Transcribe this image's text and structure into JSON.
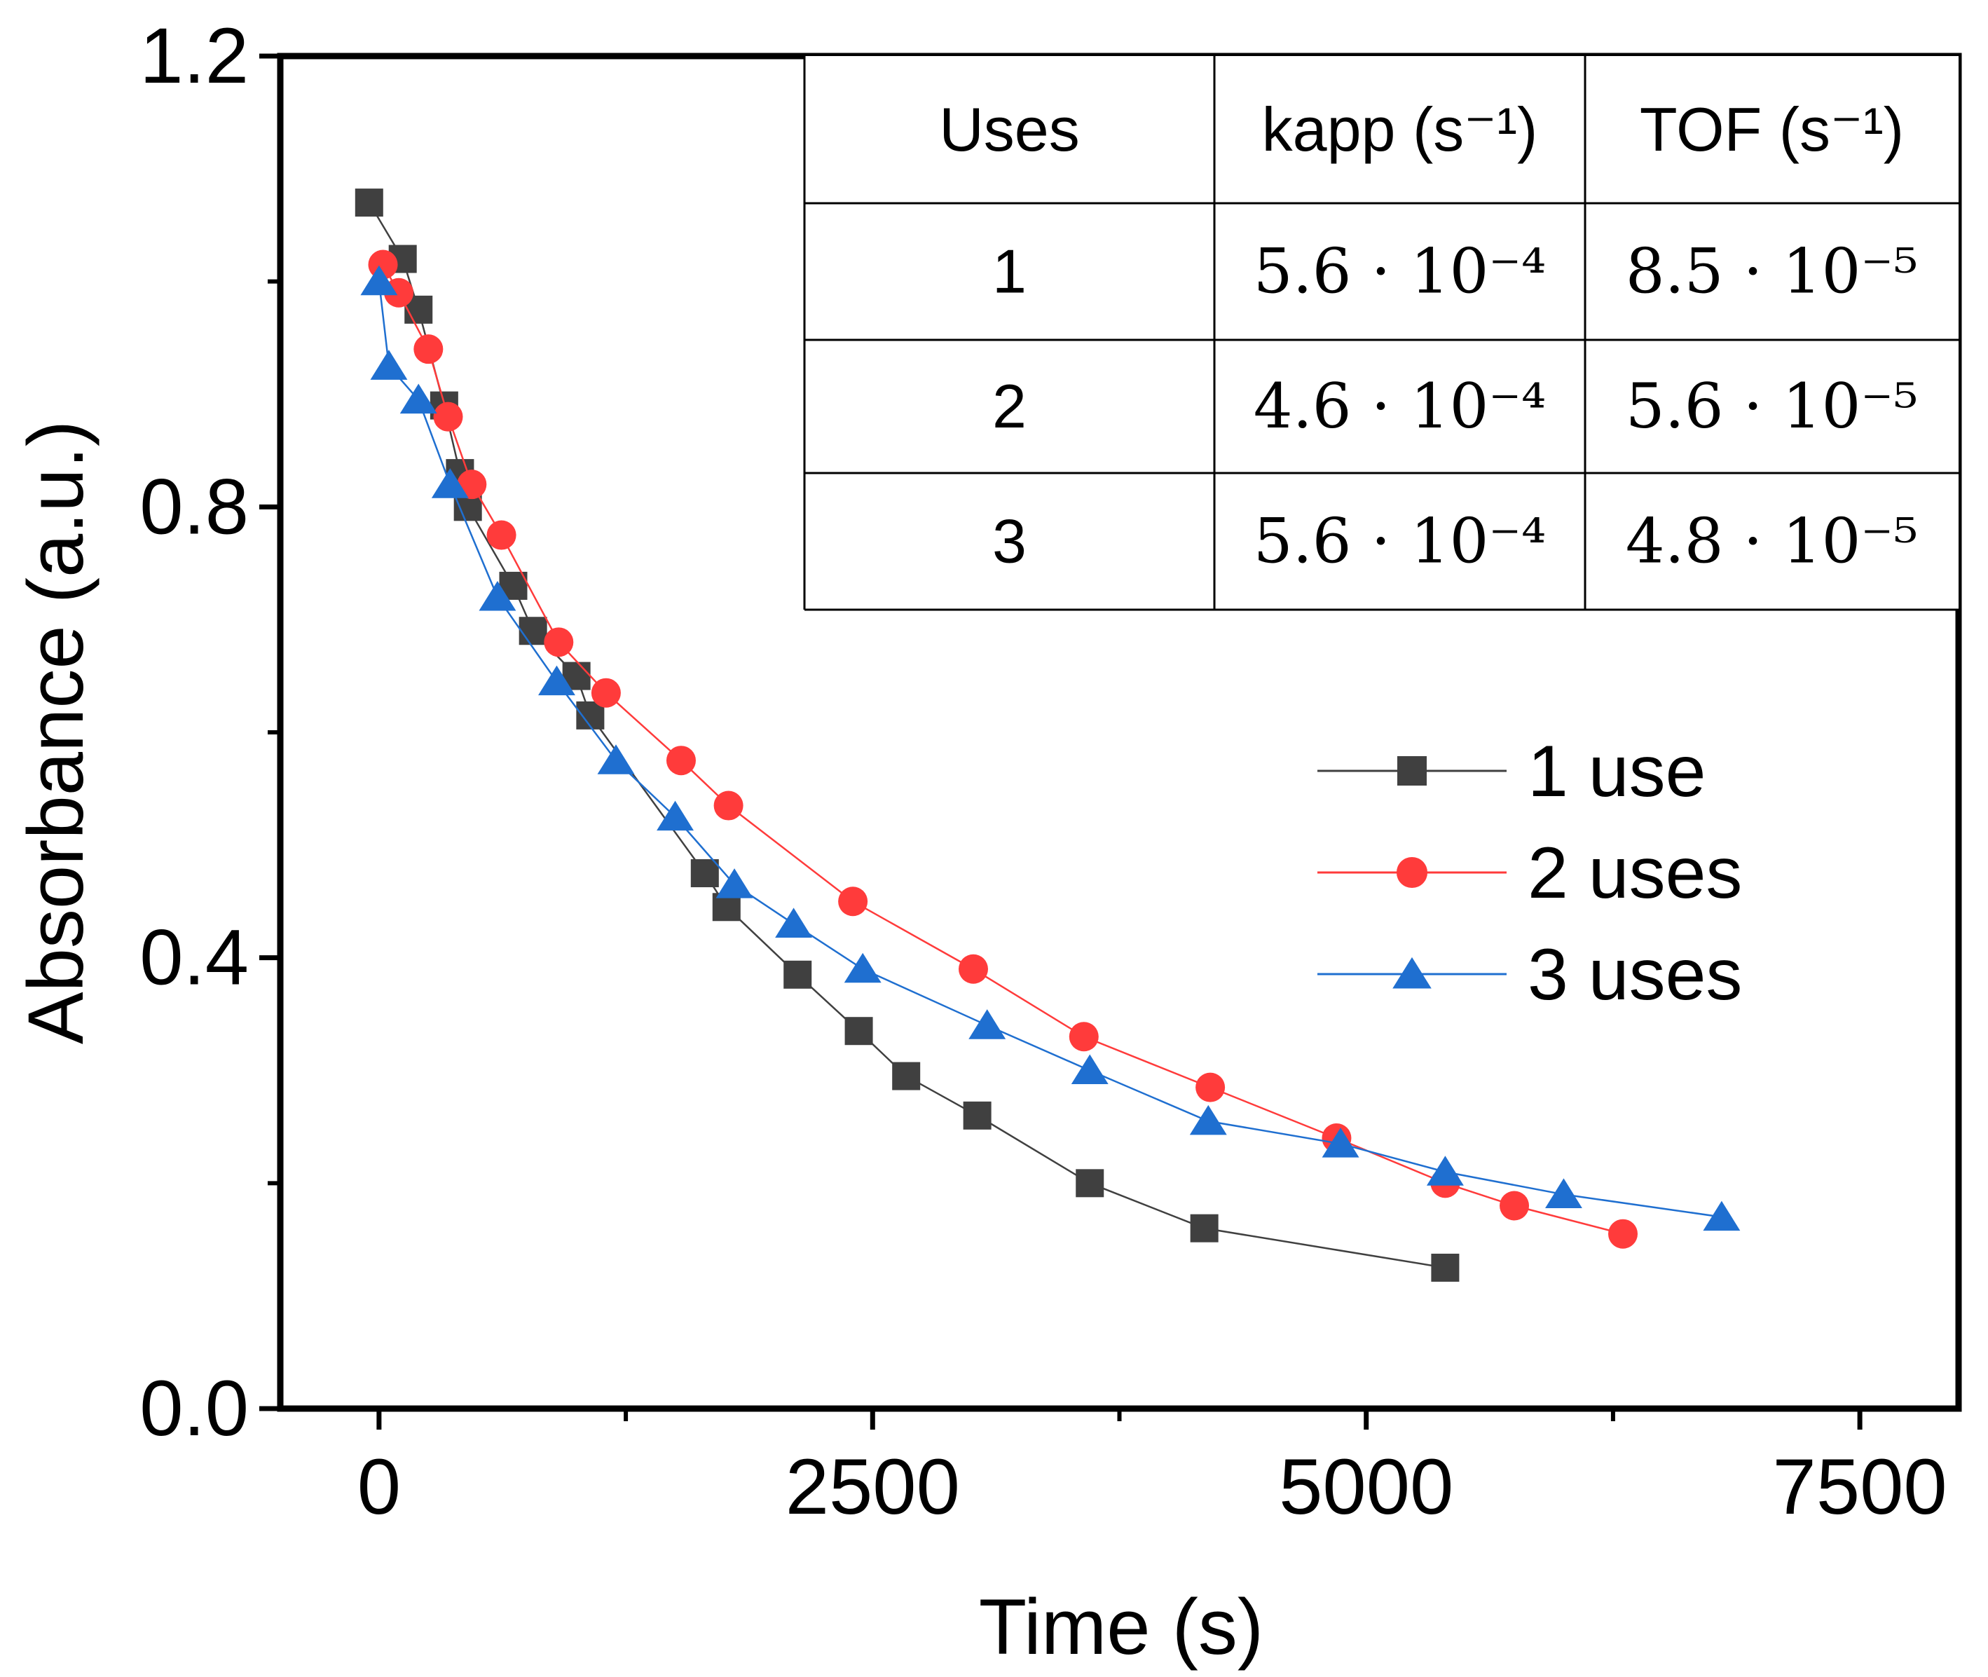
{
  "chart_data": {
    "type": "line",
    "title": "",
    "xlabel": "Time (s)",
    "ylabel": "Absorbance (a.u.)",
    "xlim": [
      -500,
      8000
    ],
    "ylim": [
      0.0,
      1.2
    ],
    "x_ticks": [
      0,
      2500,
      5000,
      7500
    ],
    "x_tick_labels": [
      "0",
      "2500",
      "5000",
      "7500"
    ],
    "y_ticks": [
      0.0,
      0.4,
      0.8,
      1.2
    ],
    "y_tick_labels": [
      "0.0",
      "0.4",
      "0.8",
      "1.2"
    ],
    "grid": false,
    "legend_position": "center-right",
    "series": [
      {
        "name": "1 use",
        "color": "#404040",
        "marker": "square",
        "x": [
          -50,
          120,
          200,
          330,
          410,
          450,
          680,
          780,
          1000,
          1070,
          1650,
          1760,
          2120,
          2430,
          2670,
          3030,
          3600,
          4180,
          5400
        ],
        "y": [
          1.07,
          1.02,
          0.975,
          0.89,
          0.83,
          0.8,
          0.73,
          0.69,
          0.65,
          0.615,
          0.475,
          0.445,
          0.385,
          0.335,
          0.295,
          0.26,
          0.2,
          0.16,
          0.125
        ]
      },
      {
        "name": "2 uses",
        "color": "#ff3b3b",
        "marker": "circle",
        "x": [
          20,
          100,
          250,
          350,
          470,
          620,
          910,
          1150,
          1530,
          1770,
          2400,
          3010,
          3570,
          4210,
          4850,
          5400,
          5750,
          6300
        ],
        "y": [
          1.015,
          0.99,
          0.94,
          0.88,
          0.82,
          0.775,
          0.68,
          0.635,
          0.575,
          0.535,
          0.45,
          0.39,
          0.33,
          0.285,
          0.24,
          0.2,
          0.18,
          0.155
        ]
      },
      {
        "name": "3 uses",
        "color": "#1f6fd0",
        "marker": "triangle",
        "x": [
          0,
          50,
          200,
          360,
          600,
          900,
          1200,
          1500,
          1800,
          2100,
          2450,
          3080,
          3600,
          4200,
          4870,
          5400,
          6000,
          6800
        ],
        "y": [
          1.0,
          0.925,
          0.895,
          0.82,
          0.72,
          0.645,
          0.575,
          0.525,
          0.465,
          0.43,
          0.39,
          0.34,
          0.3,
          0.255,
          0.235,
          0.21,
          0.19,
          0.17
        ]
      }
    ],
    "inset_table": {
      "headers": [
        "Uses",
        "kapp (s⁻¹)",
        "TOF (s⁻¹)"
      ],
      "rows": [
        [
          "1",
          "5.6 · 10⁻⁴",
          "8.5 · 10⁻⁵"
        ],
        [
          "2",
          "4.6 · 10⁻⁴",
          "5.6 · 10⁻⁵"
        ],
        [
          "3",
          "5.6 · 10⁻⁴",
          "4.8 · 10⁻⁵"
        ]
      ]
    }
  }
}
